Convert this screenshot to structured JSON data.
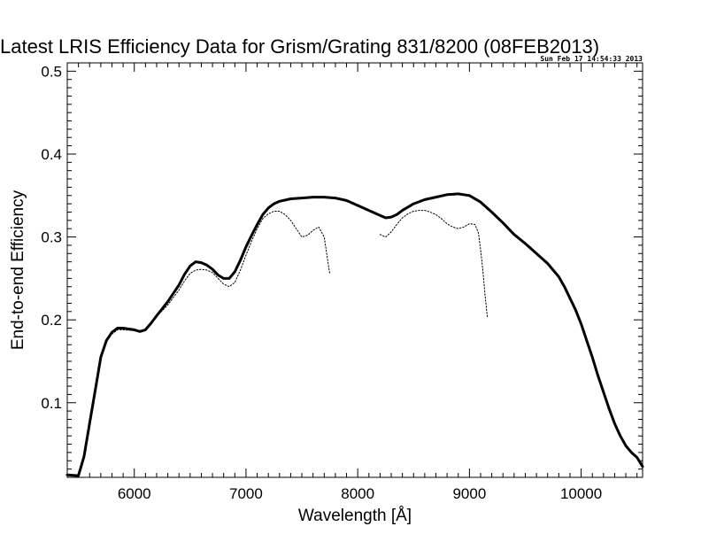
{
  "chart_data": {
    "type": "line",
    "title": "Latest LRIS Efficiency Data for Grism/Grating 831/8200 (08FEB2013)",
    "timestamp": "Sun Feb 17 14:54:33 2013",
    "xlabel": "Wavelength [Å]",
    "ylabel": "End-to-end Efficiency",
    "xlim": [
      5400,
      10550
    ],
    "ylim": [
      0.01,
      0.51
    ],
    "x_ticks": [
      6000,
      7000,
      8000,
      9000,
      10000
    ],
    "x_tick_labels": [
      "6000",
      "7000",
      "8000",
      "9000",
      "10000"
    ],
    "y_ticks": [
      0.1,
      0.2,
      0.3,
      0.4,
      0.5
    ],
    "y_tick_labels": [
      "0.1",
      "0.2",
      "0.3",
      "0.4",
      "0.5"
    ],
    "grid": false,
    "colors": {
      "line": "#000000",
      "background": "#ffffff"
    },
    "series": [
      {
        "style": "solid-thick",
        "x": [
          5400,
          5500,
          5550,
          5600,
          5650,
          5700,
          5750,
          5800,
          5850,
          5900,
          6000,
          6050,
          6100,
          6150,
          6200,
          6300,
          6400,
          6450,
          6500,
          6550,
          6600,
          6650,
          6700,
          6750,
          6800,
          6850,
          6900,
          6950,
          7000,
          7050,
          7100,
          7150,
          7200,
          7250,
          7300,
          7400,
          7500,
          7600,
          7700,
          7800,
          7900,
          8000,
          8100,
          8200,
          8250,
          8300,
          8350,
          8400,
          8500,
          8600,
          8700,
          8800,
          8900,
          9000,
          9100,
          9200,
          9300,
          9400,
          9500,
          9600,
          9700,
          9750,
          9800,
          9850,
          9900,
          9950,
          10000,
          10050,
          10100,
          10150,
          10200,
          10250,
          10300,
          10350,
          10400,
          10450,
          10500,
          10550
        ],
        "values": [
          0.013,
          0.012,
          0.035,
          0.075,
          0.115,
          0.155,
          0.175,
          0.185,
          0.19,
          0.19,
          0.188,
          0.186,
          0.188,
          0.196,
          0.205,
          0.222,
          0.242,
          0.255,
          0.265,
          0.27,
          0.269,
          0.266,
          0.261,
          0.254,
          0.25,
          0.25,
          0.258,
          0.272,
          0.288,
          0.302,
          0.315,
          0.327,
          0.335,
          0.34,
          0.343,
          0.346,
          0.347,
          0.348,
          0.348,
          0.347,
          0.344,
          0.338,
          0.332,
          0.326,
          0.323,
          0.324,
          0.327,
          0.332,
          0.34,
          0.345,
          0.348,
          0.351,
          0.352,
          0.35,
          0.342,
          0.33,
          0.317,
          0.303,
          0.292,
          0.28,
          0.268,
          0.26,
          0.252,
          0.24,
          0.226,
          0.212,
          0.195,
          0.175,
          0.155,
          0.133,
          0.113,
          0.093,
          0.075,
          0.06,
          0.048,
          0.04,
          0.034,
          0.023
        ]
      },
      {
        "style": "dotted",
        "x": [
          5400,
          5500,
          5550,
          5600,
          5650,
          5700,
          5750,
          5800,
          5850,
          5900,
          6000,
          6050,
          6100,
          6150,
          6200,
          6300,
          6400,
          6450,
          6500,
          6550,
          6600,
          6650,
          6700,
          6750,
          6800,
          6850,
          6900,
          6950,
          7000,
          7050,
          7100,
          7150,
          7200,
          7250,
          7300,
          7350,
          7400,
          7450,
          7500,
          7550,
          7600,
          7650,
          7700,
          7750
        ],
        "values": [
          0.013,
          0.012,
          0.035,
          0.075,
          0.115,
          0.155,
          0.175,
          0.183,
          0.188,
          0.188,
          0.187,
          0.186,
          0.188,
          0.195,
          0.204,
          0.218,
          0.236,
          0.247,
          0.256,
          0.26,
          0.261,
          0.26,
          0.257,
          0.25,
          0.243,
          0.24,
          0.245,
          0.26,
          0.278,
          0.295,
          0.31,
          0.322,
          0.328,
          0.331,
          0.331,
          0.327,
          0.32,
          0.31,
          0.3,
          0.302,
          0.308,
          0.312,
          0.3,
          0.255
        ]
      },
      {
        "style": "dotted",
        "x": [
          8200,
          8250,
          8300,
          8350,
          8400,
          8450,
          8500,
          8550,
          8600,
          8650,
          8700,
          8750,
          8800,
          8850,
          8900,
          8950,
          9000,
          9050,
          9080,
          9100,
          9120,
          9140,
          9160
        ],
        "values": [
          0.303,
          0.3,
          0.306,
          0.315,
          0.323,
          0.328,
          0.331,
          0.332,
          0.332,
          0.33,
          0.327,
          0.322,
          0.316,
          0.312,
          0.31,
          0.312,
          0.316,
          0.315,
          0.305,
          0.285,
          0.26,
          0.23,
          0.203
        ]
      }
    ]
  }
}
